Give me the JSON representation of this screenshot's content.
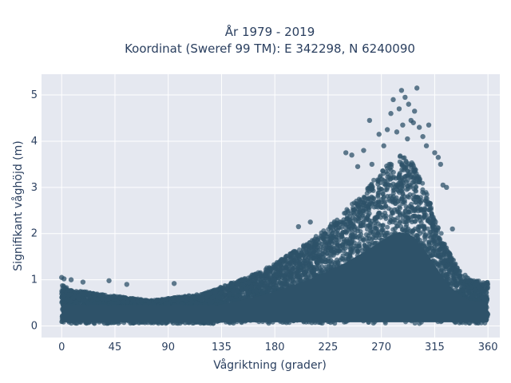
{
  "chart_data": {
    "type": "scatter",
    "title": [
      "År 1979 - 2019",
      "Koordinat (Sweref 99 TM): E 342298, N 6240090"
    ],
    "xlabel": "Vågriktning (grader)",
    "ylabel": "Signifikant våghöjd (m)",
    "xlim": [
      -17,
      370
    ],
    "ylim": [
      -0.25,
      5.45
    ],
    "xticks": [
      0,
      45,
      90,
      135,
      180,
      225,
      270,
      315,
      360
    ],
    "yticks": [
      0,
      1,
      2,
      3,
      4,
      5
    ],
    "grid": true,
    "marker_color": "#2e5269",
    "plot_bgcolor": "#e5e8f0",
    "envelope": {
      "x": [
        0,
        10,
        20,
        30,
        45,
        60,
        75,
        90,
        105,
        120,
        135,
        150,
        165,
        180,
        195,
        210,
        225,
        240,
        255,
        265,
        275,
        285,
        295,
        305,
        315,
        325,
        335,
        345,
        360
      ],
      "upper": [
        0.9,
        0.75,
        0.75,
        0.7,
        0.65,
        0.6,
        0.55,
        0.6,
        0.65,
        0.7,
        0.85,
        1.0,
        1.15,
        1.35,
        1.6,
        1.85,
        2.15,
        2.5,
        2.9,
        3.2,
        3.5,
        3.7,
        3.6,
        3.1,
        2.4,
        1.7,
        1.25,
        1.0,
        0.95
      ],
      "lower": [
        0.05,
        0.05,
        0.05,
        0.05,
        0.05,
        0.05,
        0.05,
        0.05,
        0.05,
        0.05,
        0.05,
        0.05,
        0.05,
        0.05,
        0.05,
        0.05,
        0.05,
        0.05,
        0.05,
        0.05,
        0.05,
        0.05,
        0.05,
        0.05,
        0.05,
        0.05,
        0.05,
        0.05,
        0.05
      ]
    },
    "outliers": {
      "x": [
        0,
        2,
        8,
        18,
        40,
        55,
        95,
        200,
        210,
        240,
        245,
        250,
        255,
        260,
        262,
        268,
        272,
        275,
        278,
        280,
        283,
        285,
        287,
        288,
        290,
        292,
        293,
        295,
        297,
        298,
        300,
        302,
        305,
        308,
        310,
        315,
        318,
        320,
        322,
        325,
        330
      ],
      "y": [
        1.05,
        1.02,
        1.0,
        0.95,
        0.98,
        0.9,
        0.92,
        2.15,
        2.25,
        3.75,
        3.7,
        3.45,
        3.8,
        4.45,
        3.5,
        4.15,
        3.9,
        4.25,
        4.6,
        4.9,
        4.2,
        4.7,
        5.1,
        4.35,
        4.95,
        4.05,
        4.8,
        4.45,
        4.4,
        4.65,
        5.15,
        4.3,
        4.1,
        3.9,
        4.35,
        3.75,
        3.65,
        3.5,
        3.05,
        3.0,
        2.1
      ]
    }
  }
}
